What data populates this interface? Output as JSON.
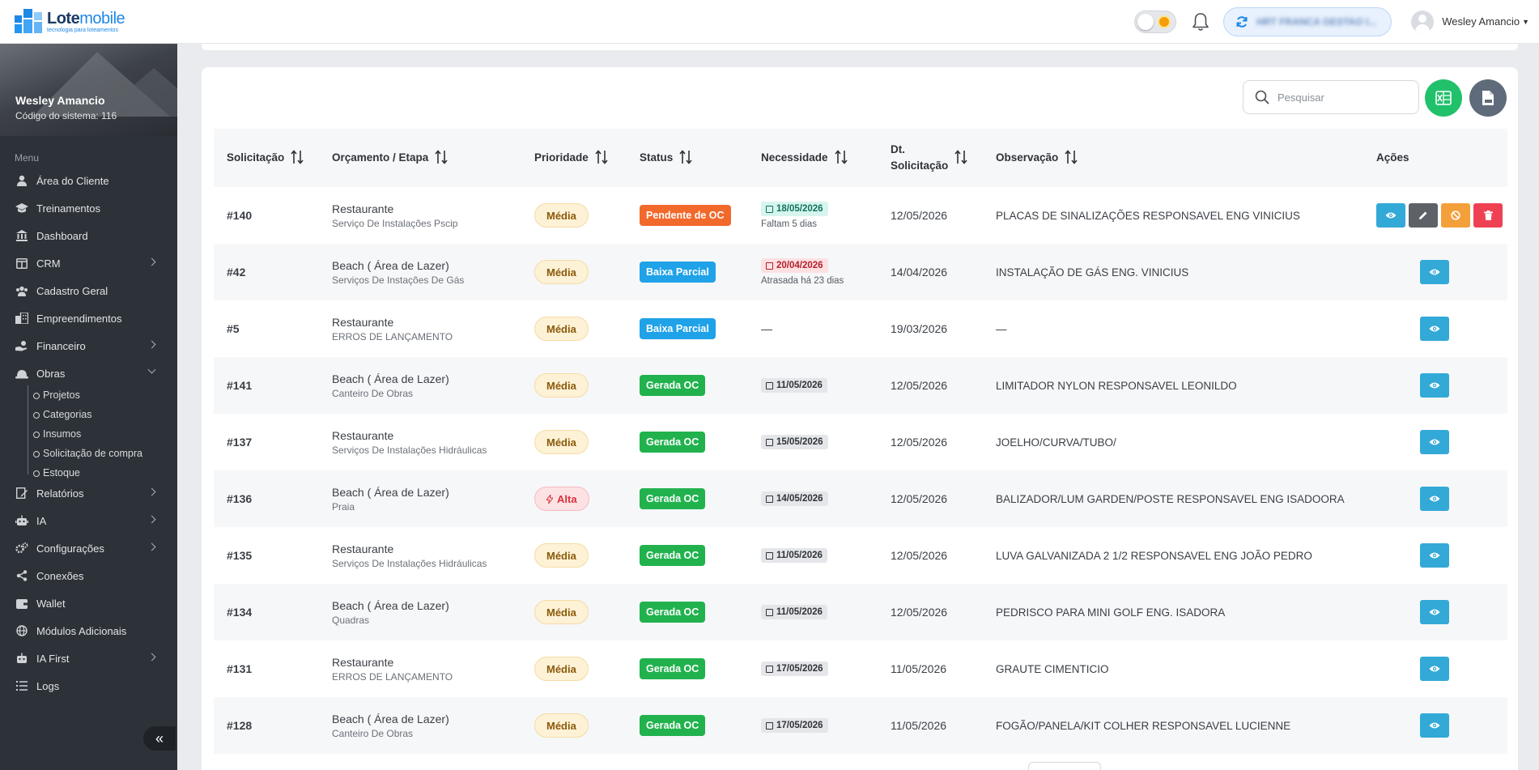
{
  "brand": {
    "name_bold": "Lote",
    "name_light": "mobile",
    "tagline": "tecnologia para loteamentos"
  },
  "header": {
    "company": "HRT FRANCA GESTAO I...",
    "user_name": "Wesley Amancio"
  },
  "sidebar": {
    "profile_name": "Wesley Amancio",
    "profile_code": "Código do sistema: 116",
    "menu_title": "Menu",
    "items": [
      {
        "label": "Área do Cliente",
        "icon": "user-icon"
      },
      {
        "label": "Treinamentos",
        "icon": "graduation-cap-icon"
      },
      {
        "label": "Dashboard",
        "icon": "bank-icon"
      },
      {
        "label": "CRM",
        "icon": "columns-icon"
      },
      {
        "label": "Cadastro Geral",
        "icon": "users-icon"
      },
      {
        "label": "Empreendimentos",
        "icon": "building-icon"
      },
      {
        "label": "Financeiro",
        "icon": "money-hand-icon"
      },
      {
        "label": "Obras",
        "icon": "helmet-icon"
      },
      {
        "label": "Relatórios",
        "icon": "report-icon"
      },
      {
        "label": "IA",
        "icon": "robot-icon"
      },
      {
        "label": "Configurações",
        "icon": "gears-icon"
      },
      {
        "label": "Conexões",
        "icon": "share-icon"
      },
      {
        "label": "Wallet",
        "icon": "wallet-icon"
      },
      {
        "label": "Módulos Adicionais",
        "icon": "globe-icon"
      },
      {
        "label": "IA First",
        "icon": "robot-icon"
      },
      {
        "label": "Logs",
        "icon": "list-icon"
      }
    ],
    "obras_sub": [
      "Projetos",
      "Categorias",
      "Insumos",
      "Solicitação de compra",
      "Estoque"
    ]
  },
  "toolbar": {
    "search_placeholder": "Pesquisar"
  },
  "table": {
    "headers": {
      "solicitacao": "Solicitação",
      "orcamento": "Orçamento / Etapa",
      "prioridade": "Prioridade",
      "status": "Status",
      "necessidade": "Necessidade",
      "dt_line1": "Dt.",
      "dt_line2": "Solicitação",
      "observacao": "Observação",
      "acoes": "Ações"
    },
    "rows": [
      {
        "id": "#140",
        "budget": "Restaurante",
        "stage": "Serviço De Instalações Pscip",
        "priority": "Média",
        "status": "Pendente de OC",
        "need_date": "18/05/2026",
        "need_note": "Faltam 5 dias",
        "need_style": "green",
        "dt": "12/05/2026",
        "obs": "PLACAS DE SINALIZAÇÕES RESPONSAVEL ENG VINICIUS",
        "full_actions": true
      },
      {
        "id": "#42",
        "budget": "Beach ( Área de Lazer)",
        "stage": "Serviços De Instações De Gás",
        "priority": "Média",
        "status": "Baixa Parcial",
        "need_date": "20/04/2026",
        "need_note": "Atrasada há 23 dias",
        "need_style": "red",
        "dt": "14/04/2026",
        "obs": "INSTALAÇÃO DE GÁS ENG. VINICIUS",
        "full_actions": false
      },
      {
        "id": "#5",
        "budget": "Restaurante",
        "stage": "ERROS DE LANÇAMENTO",
        "priority": "Média",
        "status": "Baixa Parcial",
        "need_date": "",
        "need_note": "—",
        "need_style": "none",
        "dt": "19/03/2026",
        "obs": "—",
        "full_actions": false
      },
      {
        "id": "#141",
        "budget": "Beach ( Área de Lazer)",
        "stage": "Canteiro De Obras",
        "priority": "Média",
        "status": "Gerada OC",
        "need_date": "11/05/2026",
        "need_note": "",
        "need_style": "gray",
        "dt": "12/05/2026",
        "obs": "LIMITADOR NYLON RESPONSAVEL LEONILDO",
        "full_actions": false
      },
      {
        "id": "#137",
        "budget": "Restaurante",
        "stage": "Serviços De Instalações Hidráulicas",
        "priority": "Média",
        "status": "Gerada OC",
        "need_date": "15/05/2026",
        "need_note": "",
        "need_style": "gray",
        "dt": "12/05/2026",
        "obs": "JOELHO/CURVA/TUBO/",
        "full_actions": false
      },
      {
        "id": "#136",
        "budget": "Beach ( Área de Lazer)",
        "stage": "Praia",
        "priority": "Alta",
        "status": "Gerada OC",
        "need_date": "14/05/2026",
        "need_note": "",
        "need_style": "gray",
        "dt": "12/05/2026",
        "obs": "BALIZADOR/LUM GARDEN/POSTE RESPONSAVEL ENG ISADOORA",
        "full_actions": false
      },
      {
        "id": "#135",
        "budget": "Restaurante",
        "stage": "Serviços De Instalações Hidráulicas",
        "priority": "Média",
        "status": "Gerada OC",
        "need_date": "11/05/2026",
        "need_note": "",
        "need_style": "gray",
        "dt": "12/05/2026",
        "obs": "LUVA GALVANIZADA 2 1/2 RESPONSAVEL ENG JOÃO PEDRO",
        "full_actions": false
      },
      {
        "id": "#134",
        "budget": "Beach ( Área de Lazer)",
        "stage": "Quadras",
        "priority": "Média",
        "status": "Gerada OC",
        "need_date": "11/05/2026",
        "need_note": "",
        "need_style": "gray",
        "dt": "12/05/2026",
        "obs": "PEDRISCO PARA MINI GOLF ENG. ISADORA",
        "full_actions": false
      },
      {
        "id": "#131",
        "budget": "Restaurante",
        "stage": "ERROS DE LANÇAMENTO",
        "priority": "Média",
        "status": "Gerada OC",
        "need_date": "17/05/2026",
        "need_note": "",
        "need_style": "gray",
        "dt": "11/05/2026",
        "obs": "GRAUTE CIMENTICIO",
        "full_actions": false
      },
      {
        "id": "#128",
        "budget": "Beach ( Área de Lazer)",
        "stage": "Canteiro De Obras",
        "priority": "Média",
        "status": "Gerada OC",
        "need_date": "17/05/2026",
        "need_note": "",
        "need_style": "gray",
        "dt": "11/05/2026",
        "obs": "FOGÃO/PANELA/KIT COLHER RESPONSAVEL LUCIENNE",
        "full_actions": false
      }
    ]
  },
  "colors": {
    "sidebar": "#2d3238",
    "excel": "#21c16b",
    "pdf": "#5f6b7a",
    "view": "#33a9d7",
    "edit": "#5d6168",
    "cancel": "#f3a03a",
    "delete": "#ef4154"
  }
}
